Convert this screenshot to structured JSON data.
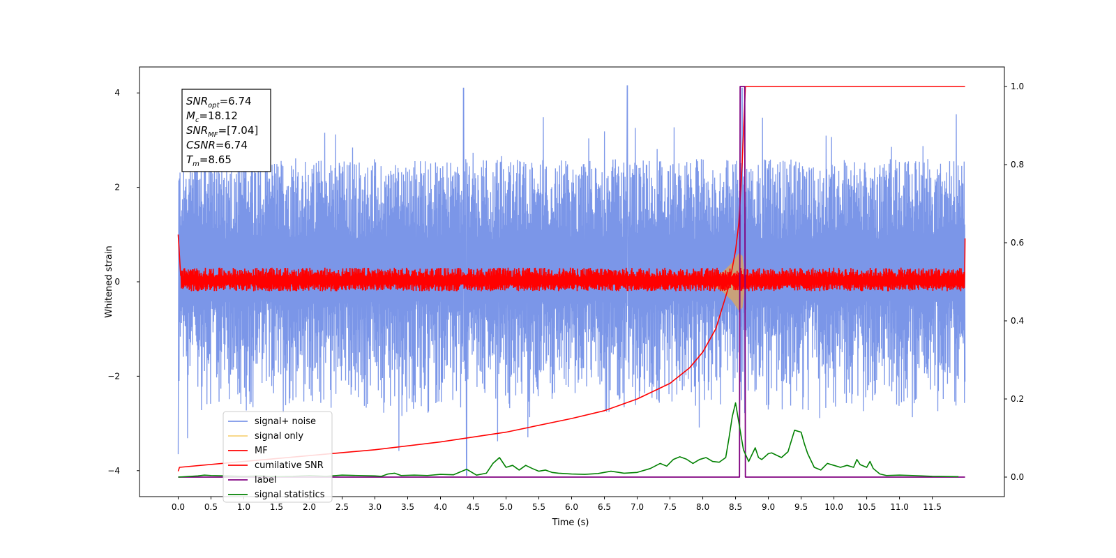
{
  "chart_data": {
    "type": "line",
    "xlabel": "Time (s)",
    "ylabel": "Whitened strain",
    "xlim": [
      -0.59,
      12.6
    ],
    "ylim_left": [
      -4.55,
      4.55
    ],
    "ylim_right": [
      -0.05,
      1.05
    ],
    "x_ticks": [
      0.0,
      0.5,
      1.0,
      1.5,
      2.0,
      2.5,
      3.0,
      3.5,
      4.0,
      4.5,
      5.0,
      5.5,
      6.0,
      6.5,
      7.0,
      7.5,
      8.0,
      8.5,
      9.0,
      9.5,
      10.0,
      10.5,
      11.0,
      11.5
    ],
    "x_tick_labels": [
      "0.0",
      "0.5",
      "1.0",
      "1.5",
      "2.0",
      "2.5",
      "3.0",
      "3.5",
      "4.0",
      "4.5",
      "5.0",
      "5.5",
      "6.0",
      "6.5",
      "7.0",
      "7.5",
      "8.0",
      "8.5",
      "9.0",
      "9.5",
      "10.0",
      "10.5",
      "11.0",
      "11.5"
    ],
    "y_ticks_left": [
      -4,
      -2,
      0,
      2,
      4
    ],
    "y_tick_labels_left": [
      "−4",
      "−2",
      "0",
      "2",
      "4"
    ],
    "y_ticks_right": [
      0.0,
      0.2,
      0.4,
      0.6,
      0.8,
      1.0
    ],
    "y_tick_labels_right": [
      "0.0",
      "0.2",
      "0.4",
      "0.6",
      "0.8",
      "1.0"
    ],
    "grid": false,
    "legend_position": "lower-left",
    "legend": [
      {
        "label": "signal+ noise",
        "color": "#7b96e8"
      },
      {
        "label": "signal only",
        "color": "#f7d27a"
      },
      {
        "label": "MF",
        "color": "#ff0000"
      },
      {
        "label": "cumilative SNR",
        "color": "#ff0000"
      },
      {
        "label": "label",
        "color": "#800080"
      },
      {
        "label": "signal statistics",
        "color": "#008000"
      }
    ],
    "annotation_lines": [
      {
        "base": "SNR",
        "sub": "opt",
        "value": "=6.74"
      },
      {
        "base": "M",
        "sub": "c",
        "value": "=18.12"
      },
      {
        "base": "SNR",
        "sub": "MF",
        "value": "=[7.04]"
      },
      {
        "base": "CSNR",
        "sub": "",
        "value": "=6.74"
      },
      {
        "base": "T",
        "sub": "m",
        "value": "=8.65"
      }
    ],
    "series": [
      {
        "name": "signal+ noise",
        "axis": "left",
        "kind": "noise_band",
        "color": "#7b96e8",
        "x_range": [
          0.0,
          12.0
        ],
        "band_upper": [
          0.9,
          2.6
        ],
        "band_lower": [
          -2.8,
          -0.4
        ],
        "sample_peaks": [
          {
            "x": 0.0,
            "y": -3.65
          },
          {
            "x": 4.35,
            "y": 4.1
          },
          {
            "x": 4.4,
            "y": -4.1
          },
          {
            "x": 6.85,
            "y": 4.15
          },
          {
            "x": 8.6,
            "y": 4.1
          }
        ]
      },
      {
        "name": "signal only",
        "axis": "left",
        "kind": "chirp",
        "color": "#c9a27a",
        "x": [
          8.1,
          8.3,
          8.45,
          8.55,
          8.6,
          8.65
        ],
        "amplitude": [
          0.05,
          0.2,
          0.4,
          0.6,
          0.55,
          0.0
        ]
      },
      {
        "name": "MF",
        "axis": "left",
        "kind": "noise_band",
        "color": "#ff0000",
        "x_range": [
          0.0,
          12.0
        ],
        "band_upper": [
          0.1,
          0.3
        ],
        "band_lower": [
          -0.2,
          -0.05
        ],
        "endpoints": [
          {
            "x": 0.0,
            "y": 1.0
          },
          {
            "x": 12.0,
            "y": 0.92
          }
        ]
      },
      {
        "name": "cumilative SNR",
        "axis": "right",
        "color": "#ff0000",
        "x": [
          0.0,
          0.02,
          1.0,
          2.0,
          3.0,
          4.0,
          5.0,
          6.0,
          6.5,
          7.0,
          7.5,
          7.8,
          8.0,
          8.2,
          8.4,
          8.5,
          8.55,
          8.6,
          8.65,
          12.0
        ],
        "y": [
          0.015,
          0.025,
          0.04,
          0.055,
          0.07,
          0.09,
          0.115,
          0.15,
          0.17,
          0.2,
          0.24,
          0.28,
          0.32,
          0.38,
          0.49,
          0.58,
          0.65,
          0.8,
          1.0,
          1.0
        ]
      },
      {
        "name": "label",
        "axis": "right",
        "color": "#800080",
        "x": [
          0.0,
          8.56,
          8.57,
          8.64,
          8.65,
          12.0
        ],
        "y": [
          0.0,
          0.0,
          1.0,
          1.0,
          0.0,
          0.0
        ]
      },
      {
        "name": "signal statistics",
        "axis": "right",
        "color": "#008000",
        "x": [
          0.0,
          0.3,
          0.4,
          0.5,
          0.75,
          1.0,
          1.25,
          1.5,
          1.75,
          2.0,
          2.25,
          2.5,
          2.75,
          3.0,
          3.1,
          3.2,
          3.3,
          3.4,
          3.6,
          3.8,
          4.0,
          4.2,
          4.4,
          4.55,
          4.7,
          4.8,
          4.9,
          5.0,
          5.1,
          5.2,
          5.3,
          5.4,
          5.5,
          5.6,
          5.7,
          5.8,
          6.0,
          6.2,
          6.4,
          6.6,
          6.8,
          7.0,
          7.2,
          7.35,
          7.45,
          7.55,
          7.65,
          7.75,
          7.85,
          7.95,
          8.05,
          8.15,
          8.25,
          8.35,
          8.4,
          8.45,
          8.5,
          8.55,
          8.62,
          8.7,
          8.8,
          8.85,
          8.9,
          9.0,
          9.05,
          9.1,
          9.2,
          9.3,
          9.4,
          9.5,
          9.55,
          9.6,
          9.7,
          9.8,
          9.9,
          10.0,
          10.1,
          10.2,
          10.3,
          10.35,
          10.4,
          10.5,
          10.55,
          10.6,
          10.7,
          10.8,
          11.0,
          11.2,
          11.5,
          11.9
        ],
        "y": [
          0.0,
          0.003,
          0.005,
          0.004,
          0.003,
          0.002,
          0.003,
          0.001,
          0.002,
          0.004,
          0.002,
          0.005,
          0.004,
          0.003,
          0.002,
          0.008,
          0.01,
          0.004,
          0.005,
          0.004,
          0.007,
          0.006,
          0.02,
          0.005,
          0.01,
          0.035,
          0.05,
          0.025,
          0.03,
          0.018,
          0.03,
          0.022,
          0.015,
          0.018,
          0.012,
          0.01,
          0.008,
          0.007,
          0.009,
          0.015,
          0.01,
          0.012,
          0.022,
          0.035,
          0.028,
          0.045,
          0.052,
          0.046,
          0.035,
          0.045,
          0.05,
          0.04,
          0.038,
          0.05,
          0.1,
          0.155,
          0.19,
          0.14,
          0.07,
          0.04,
          0.075,
          0.05,
          0.045,
          0.06,
          0.062,
          0.058,
          0.05,
          0.065,
          0.12,
          0.115,
          0.085,
          0.06,
          0.025,
          0.018,
          0.035,
          0.03,
          0.025,
          0.03,
          0.025,
          0.045,
          0.032,
          0.025,
          0.04,
          0.022,
          0.008,
          0.004,
          0.005,
          0.004,
          0.002,
          0.001
        ]
      }
    ]
  }
}
